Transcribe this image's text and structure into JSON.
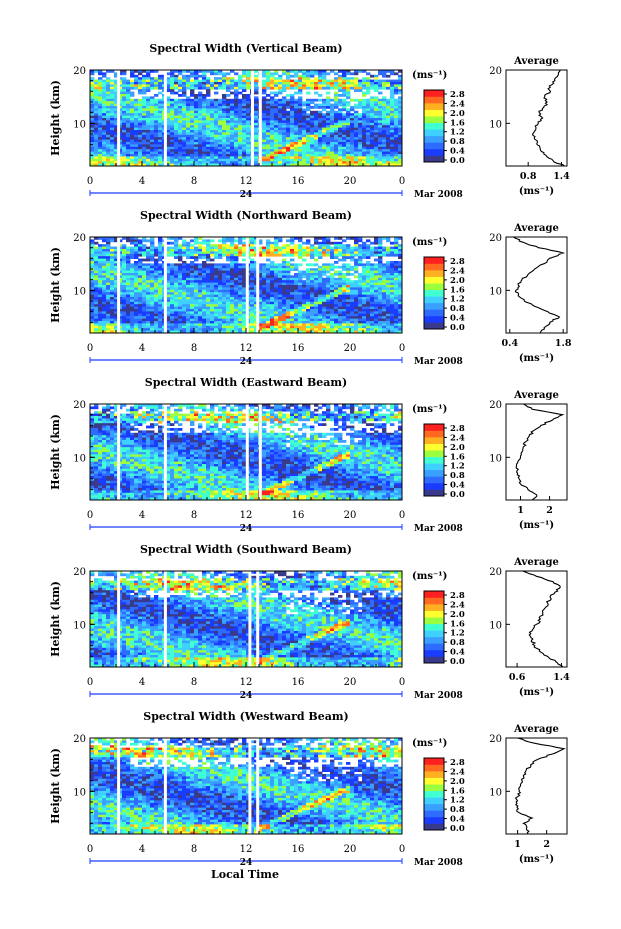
{
  "figure": {
    "colorbar_unit": "(ms⁻¹)",
    "colorbar_ticks": [
      "0.0",
      "0.4",
      "0.8",
      "1.2",
      "1.6",
      "2.0",
      "2.4",
      "2.8"
    ],
    "x_ticks": [
      "0",
      "4",
      "8",
      "12",
      "16",
      "20",
      "0"
    ],
    "day_label": "24",
    "month_label": "Mar 2008",
    "y_label": "Height (km)",
    "y_ticks": [
      "20",
      "10"
    ],
    "avg_title": "Average",
    "avg_unit": "(ms⁻¹)",
    "x_axis_label": "Local Time",
    "colors": {
      "scale": [
        "#3a3a8c",
        "#1a3cff",
        "#2e6cff",
        "#3aa0ff",
        "#3fd0ff",
        "#40ffd0",
        "#9bff40",
        "#ffff30",
        "#ffb020",
        "#ff6a20",
        "#ff2020"
      ]
    }
  },
  "chart_data": [
    {
      "type": "heatmap",
      "title": "Spectral Width (Vertical Beam)",
      "x": {
        "range": [
          0,
          24
        ],
        "unit": "LT hour"
      },
      "y": {
        "range": [
          2,
          20
        ],
        "label": "Height (km)"
      },
      "color_range": [
        0,
        3.0
      ],
      "gaps_hours": [
        2.2,
        5.8,
        12.5,
        13.1
      ],
      "profile": {
        "title": "Average",
        "xlim": [
          0.4,
          1.5
        ],
        "xticks": [
          "0.8",
          "1.4"
        ],
        "heights_km": [
          2,
          3,
          4,
          5,
          6,
          7,
          8,
          9,
          10,
          11,
          12,
          13,
          14,
          15,
          16,
          17,
          18,
          19,
          20
        ],
        "values": [
          1.45,
          1.25,
          1.12,
          1.02,
          0.96,
          0.92,
          0.88,
          0.94,
          0.98,
          1.06,
          1.0,
          1.08,
          1.14,
          1.1,
          1.2,
          1.18,
          1.28,
          1.34,
          1.38
        ]
      }
    },
    {
      "type": "heatmap",
      "title": "Spectral Width (Northward Beam)",
      "x": {
        "range": [
          0,
          24
        ],
        "unit": "LT hour"
      },
      "y": {
        "range": [
          2,
          20
        ],
        "label": "Height (km)"
      },
      "color_range": [
        0,
        3.0
      ],
      "gaps_hours": [
        2.2,
        5.8,
        12.1,
        12.9
      ],
      "profile": {
        "title": "Average",
        "xlim": [
          0.3,
          1.9
        ],
        "xticks": [
          "0.4",
          "1.8"
        ],
        "heights_km": [
          2,
          3,
          4,
          5,
          6,
          7,
          8,
          9,
          10,
          11,
          12,
          13,
          14,
          15,
          16,
          17,
          18,
          19,
          20
        ],
        "values": [
          1.2,
          1.3,
          1.45,
          1.7,
          1.4,
          1.05,
          0.78,
          0.62,
          0.56,
          0.62,
          0.72,
          0.88,
          1.05,
          1.3,
          1.45,
          1.8,
          1.15,
          0.75,
          0.5
        ]
      }
    },
    {
      "type": "heatmap",
      "title": "Spectral Width (Eastward Beam)",
      "x": {
        "range": [
          0,
          24
        ],
        "unit": "LT hour"
      },
      "y": {
        "range": [
          2,
          20
        ],
        "label": "Height (km)"
      },
      "color_range": [
        0,
        3.0
      ],
      "gaps_hours": [
        2.2,
        5.8,
        12.1,
        13.1
      ],
      "profile": {
        "title": "Average",
        "xlim": [
          0.5,
          2.6
        ],
        "xticks": [
          "1",
          "2"
        ],
        "heights_km": [
          2,
          3,
          4,
          5,
          6,
          7,
          8,
          9,
          10,
          11,
          12,
          13,
          14,
          15,
          16,
          17,
          18,
          19,
          20
        ],
        "values": [
          1.4,
          1.55,
          1.25,
          1.0,
          0.95,
          0.9,
          0.85,
          0.9,
          1.0,
          1.05,
          1.1,
          1.2,
          1.3,
          1.45,
          1.7,
          2.1,
          2.45,
          1.4,
          1.1
        ]
      }
    },
    {
      "type": "heatmap",
      "title": "Spectral Width (Southward Beam)",
      "x": {
        "range": [
          0,
          24
        ],
        "unit": "LT hour"
      },
      "y": {
        "range": [
          2,
          20
        ],
        "label": "Height (km)"
      },
      "color_range": [
        0,
        3.0
      ],
      "gaps_hours": [
        2.2,
        5.8,
        12.3,
        12.9
      ],
      "profile": {
        "title": "Average",
        "xlim": [
          0.4,
          1.5
        ],
        "xticks": [
          "0.6",
          "1.4"
        ],
        "heights_km": [
          2,
          3,
          4,
          5,
          6,
          7,
          8,
          9,
          10,
          11,
          12,
          13,
          14,
          15,
          16,
          17,
          18,
          19,
          20
        ],
        "values": [
          1.42,
          1.3,
          1.15,
          1.0,
          0.92,
          0.86,
          0.82,
          0.88,
          0.95,
          1.02,
          1.06,
          1.1,
          1.15,
          1.2,
          1.28,
          1.38,
          1.25,
          0.95,
          0.7
        ]
      }
    },
    {
      "type": "heatmap",
      "title": "Spectral Width (Westward Beam)",
      "x": {
        "range": [
          0,
          24
        ],
        "unit": "LT hour"
      },
      "y": {
        "range": [
          2,
          20
        ],
        "label": "Height (km)"
      },
      "color_range": [
        0,
        3.0
      ],
      "gaps_hours": [
        2.2,
        5.8,
        12.3,
        12.9
      ],
      "profile": {
        "title": "Average",
        "xlim": [
          0.6,
          2.7
        ],
        "xticks": [
          "1",
          "2"
        ],
        "heights_km": [
          2,
          3,
          4,
          5,
          6,
          7,
          8,
          9,
          10,
          11,
          12,
          13,
          14,
          15,
          16,
          17,
          18,
          19,
          20
        ],
        "values": [
          1.35,
          1.3,
          1.2,
          1.5,
          1.05,
          0.98,
          0.95,
          1.0,
          1.05,
          1.1,
          1.15,
          1.2,
          1.3,
          1.45,
          1.7,
          2.2,
          2.6,
          1.6,
          1.0
        ]
      }
    }
  ]
}
